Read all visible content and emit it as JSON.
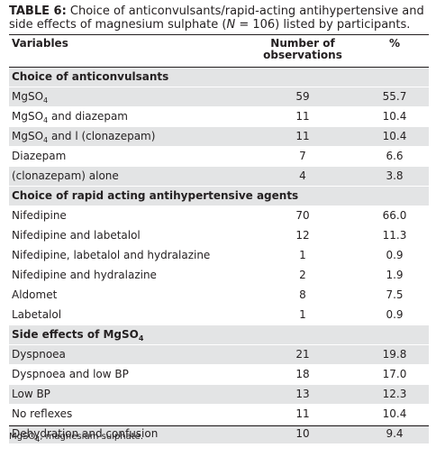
{
  "caption": {
    "label": "TABLE 6:",
    "text_before": " Choice of anticonvulsants/rapid-acting antihypertensive and side effects of magnesium sulphate (",
    "n_symbol": "N",
    "text_after": " = 106) listed by participants."
  },
  "header": {
    "variables": "Variables",
    "number": "Number of observations",
    "percent": "%"
  },
  "rows": [
    {
      "label": "Choice of anticonvulsants",
      "section": true
    },
    {
      "label": "MgSO",
      "sub": "4",
      "label_after": "",
      "n": "59",
      "p": "55.7"
    },
    {
      "label": "MgSO",
      "sub": "4",
      "label_after": " and diazepam",
      "n": "11",
      "p": "10.4"
    },
    {
      "label": "MgSO",
      "sub": "4",
      "label_after": " and l (clonazepam)",
      "n": "11",
      "p": "10.4"
    },
    {
      "label": "Diazepam",
      "n": "7",
      "p": "6.6"
    },
    {
      "label": "(clonazepam) alone",
      "n": "4",
      "p": "3.8"
    },
    {
      "label": "Choice of rapid acting antihypertensive agents",
      "section": true
    },
    {
      "label": "Nifedipine",
      "n": "70",
      "p": "66.0"
    },
    {
      "label": "Nifedipine and labetalol",
      "n": "12",
      "p": "11.3"
    },
    {
      "label": "Nifedipine, labetalol and hydralazine",
      "n": "1",
      "p": "0.9"
    },
    {
      "label": "Nifedipine and hydralazine",
      "n": "2",
      "p": "1.9"
    },
    {
      "label": "Aldomet",
      "n": "8",
      "p": "7.5"
    },
    {
      "label": "Labetalol",
      "n": "1",
      "p": "0.9"
    },
    {
      "label": "Side effects of MgSO",
      "sub": "4",
      "label_after": "",
      "section": true
    },
    {
      "label": "Dyspnoea",
      "n": "21",
      "p": "19.8"
    },
    {
      "label": "Dyspnoea and low BP",
      "n": "18",
      "p": "17.0"
    },
    {
      "label": "Low BP",
      "n": "13",
      "p": "12.3"
    },
    {
      "label": "No reflexes",
      "n": "11",
      "p": "10.4"
    },
    {
      "label": "Dehydration and confusion",
      "n": "10",
      "p": "9.4"
    }
  ],
  "footnote": {
    "abbr": "MgSO",
    "sub": "4",
    "text": ", magnesium sulphate."
  }
}
